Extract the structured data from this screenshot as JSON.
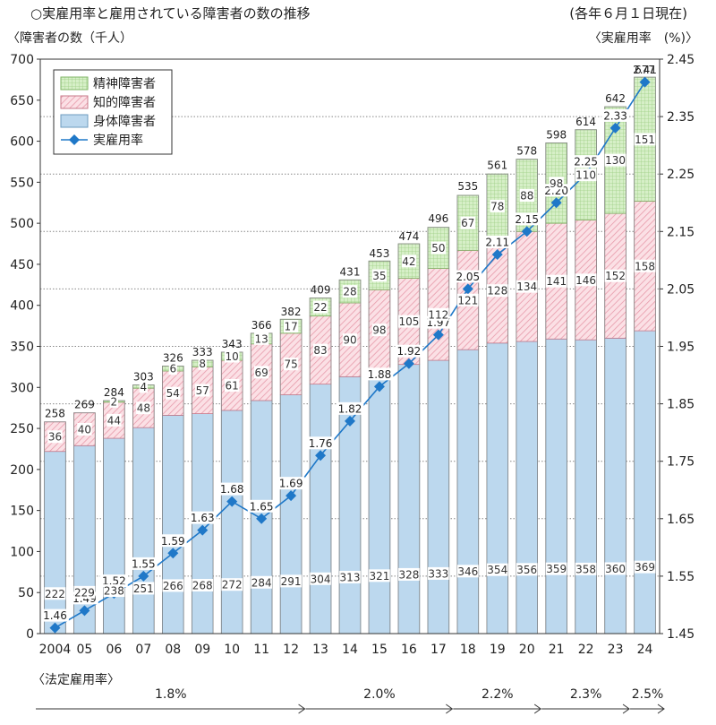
{
  "header": {
    "title": "○実雇用率と雇用されている障害者の数の推移",
    "as_of": "(各年６月１日現在)",
    "ylabel_left": "〈障害者の数（千人）",
    "ylabel_right": "〈実雇用率　(%)〉",
    "legal_rate_label": "〈法定雇用率〉"
  },
  "chart_data": {
    "type": "bar",
    "stacked": true,
    "categories": [
      "2004",
      "05",
      "06",
      "07",
      "08",
      "09",
      "10",
      "11",
      "12",
      "13",
      "14",
      "15",
      "16",
      "17",
      "18",
      "19",
      "20",
      "21",
      "22",
      "23",
      "24"
    ],
    "series": [
      {
        "name": "身体障害者",
        "values": [
          222,
          229,
          238,
          251,
          266,
          268,
          272,
          284,
          291,
          304,
          313,
          321,
          328,
          333,
          346,
          354,
          356,
          359,
          358,
          360,
          369
        ],
        "color": "#bcd8ee"
      },
      {
        "name": "知的障害者",
        "values": [
          36,
          40,
          44,
          48,
          54,
          57,
          61,
          69,
          75,
          83,
          90,
          98,
          105,
          112,
          121,
          128,
          134,
          141,
          146,
          152,
          158
        ],
        "color": "#f7ccd4"
      },
      {
        "name": "精神障害者",
        "values": [
          0,
          0,
          2,
          4,
          6,
          8,
          10,
          13,
          17,
          22,
          28,
          35,
          42,
          50,
          67,
          78,
          88,
          98,
          110,
          130,
          151
        ],
        "color": "#d6efc7"
      }
    ],
    "totals": [
      258,
      269,
      284,
      303,
      326,
      333,
      343,
      366,
      382,
      409,
      431,
      453,
      474,
      496,
      535,
      561,
      578,
      598,
      614,
      642,
      677
    ],
    "line": {
      "name": "実雇用率",
      "values": [
        1.46,
        1.49,
        1.52,
        1.55,
        1.59,
        1.63,
        1.68,
        1.65,
        1.69,
        1.76,
        1.82,
        1.88,
        1.92,
        1.97,
        2.05,
        2.11,
        2.15,
        2.2,
        2.25,
        2.33,
        2.41
      ],
      "color": "#1f78c8"
    },
    "ylim_left": [
      0,
      700
    ],
    "yticks_left": [
      0,
      50,
      100,
      150,
      200,
      250,
      300,
      350,
      400,
      450,
      500,
      550,
      600,
      650,
      700
    ],
    "ylim_right": [
      1.45,
      2.45
    ],
    "yticks_right": [
      "1.45",
      "1.55",
      "1.65",
      "1.75",
      "1.85",
      "1.95",
      "2.05",
      "2.15",
      "2.25",
      "2.35",
      "2.45"
    ],
    "legend_position": "top-left",
    "legal_rates": [
      {
        "label": "1.8%",
        "from": "2004",
        "to": "12"
      },
      {
        "label": "2.0%",
        "from": "13",
        "to": "17"
      },
      {
        "label": "2.2%",
        "from": "18",
        "to": "20"
      },
      {
        "label": "2.3%",
        "from": "21",
        "to": "23"
      },
      {
        "label": "2.5%",
        "from": "24",
        "to": "24"
      }
    ]
  }
}
